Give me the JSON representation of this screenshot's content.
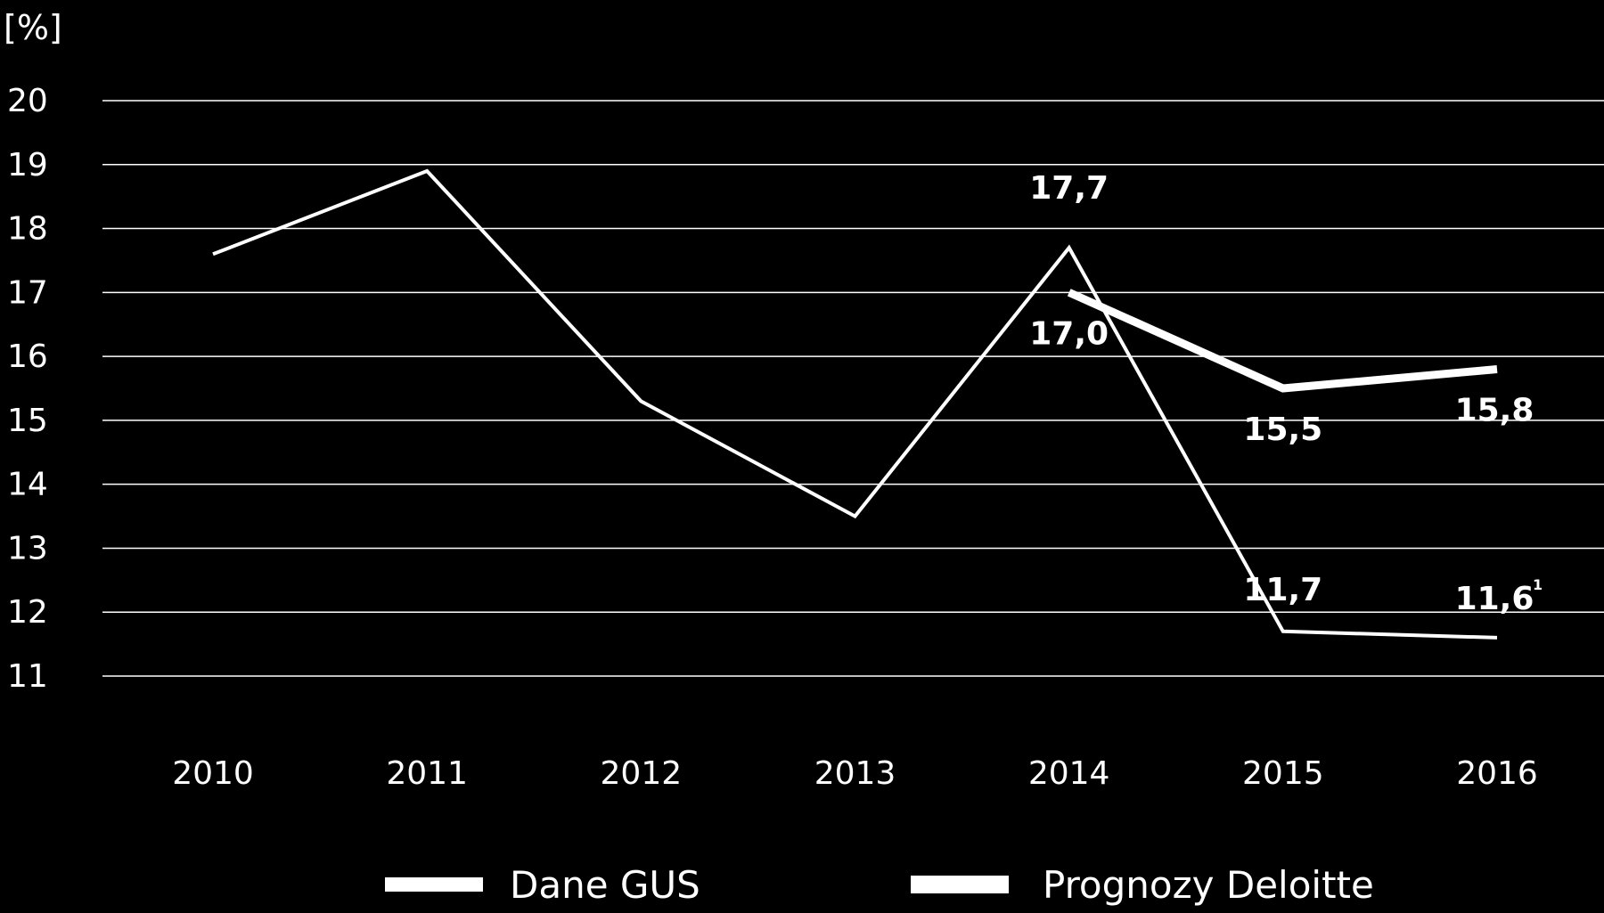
{
  "chart_data": {
    "type": "line",
    "title": "",
    "unit_label": "[%]",
    "xlabel": "",
    "ylabel": "[%]",
    "ylim": [
      11,
      20
    ],
    "y_ticks": [
      "20",
      "19",
      "18",
      "17",
      "16",
      "15",
      "14",
      "13",
      "12",
      "11"
    ],
    "categories": [
      "2010",
      "2011",
      "2012",
      "2013",
      "2014",
      "2015",
      "2016"
    ],
    "grid": true,
    "legend_position": "bottom",
    "series": [
      {
        "name": "Dane GUS",
        "color": "#ffffff",
        "values": [
          17.6,
          18.9,
          15.3,
          13.5,
          17.7,
          11.7,
          11.6
        ],
        "labels": [
          null,
          null,
          null,
          null,
          "17,7",
          "11,7",
          "11,6"
        ],
        "footnote_mark": {
          "index": 6,
          "text": "1"
        }
      },
      {
        "name": "Prognozy Deloitte",
        "color": "#ffffff",
        "values": [
          null,
          null,
          null,
          null,
          17.0,
          15.5,
          15.8
        ],
        "labels": [
          null,
          null,
          null,
          null,
          "17,0",
          "15,5",
          "15,8"
        ]
      }
    ]
  }
}
